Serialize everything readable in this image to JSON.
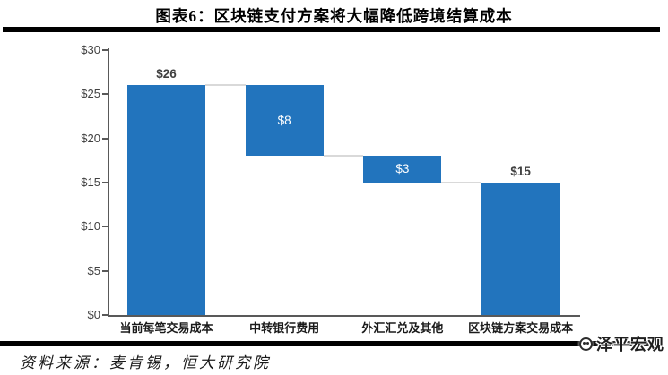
{
  "header": {
    "title": "图表6：区块链支付方案将大幅降低跨境结算成本"
  },
  "chart_data": {
    "type": "bar",
    "subtype": "waterfall",
    "title": "图表6：区块链支付方案将大幅降低跨境结算成本",
    "categories": [
      "当前每笔交易成本",
      "中转银行费用",
      "外汇汇兑及其他",
      "区块链方案交易成本"
    ],
    "bars": [
      {
        "category": "当前每笔交易成本",
        "label": "$26",
        "value": 26,
        "start": 0,
        "end": 26,
        "label_position": "above"
      },
      {
        "category": "中转银行费用",
        "label": "$8",
        "value": 8,
        "start": 18,
        "end": 26,
        "label_position": "inside"
      },
      {
        "category": "外汇汇兑及其他",
        "label": "$3",
        "value": 3,
        "start": 15,
        "end": 18,
        "label_position": "inside"
      },
      {
        "category": "区块链方案交易成本",
        "label": "$15",
        "value": 15,
        "start": 0,
        "end": 15,
        "label_position": "above"
      }
    ],
    "y_ticks": [
      {
        "label": "$30",
        "value": 30
      },
      {
        "label": "$25",
        "value": 25
      },
      {
        "label": "$20",
        "value": 20
      },
      {
        "label": "$15",
        "value": 15
      },
      {
        "label": "$10",
        "value": 10
      },
      {
        "label": "$5",
        "value": 5
      },
      {
        "label": "$0",
        "value": 0
      }
    ],
    "ylim": [
      0,
      30
    ],
    "xlabel": "",
    "ylabel": "",
    "grid": false,
    "legend": "none",
    "colors": {
      "bar": "#2274BD",
      "connector": "#D9D9D9",
      "axis": "#595959",
      "value_label_dark": "#404040",
      "value_label_light": "#FFFFFF"
    }
  },
  "footer": {
    "source": "资料来源：麦肯锡，恒大研究院",
    "watermark": "泽平宏观"
  }
}
